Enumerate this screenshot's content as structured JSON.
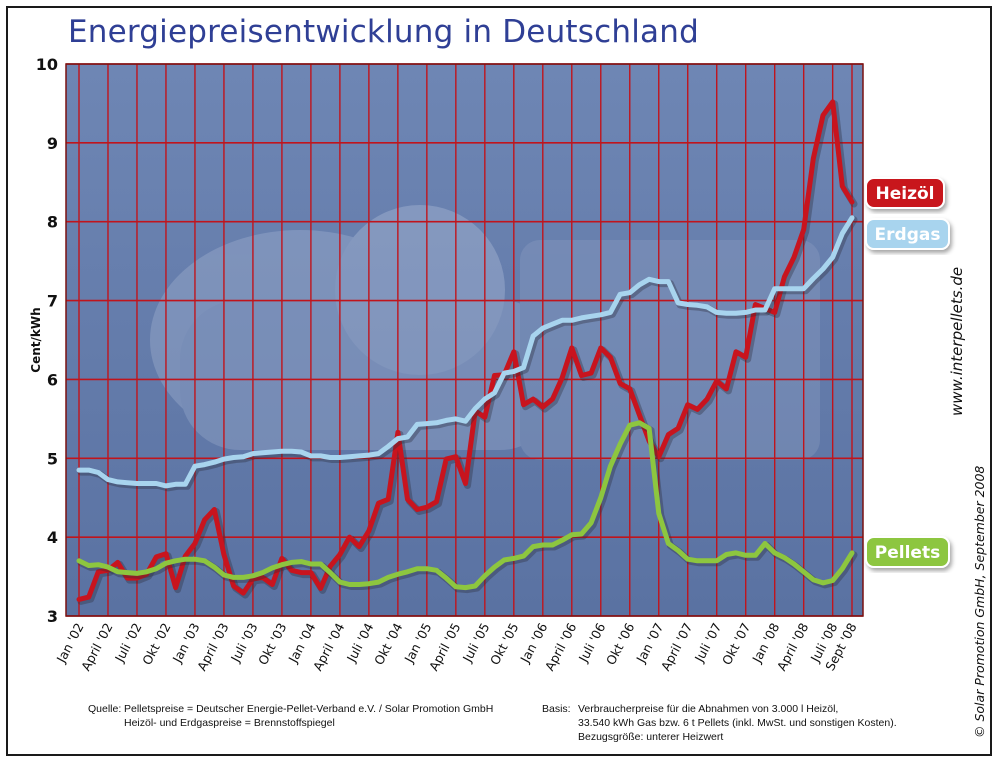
{
  "chart_data": {
    "type": "line",
    "title": "Energiepreisentwicklung in Deutschland",
    "ylabel": "Cent/kWh",
    "xlabel": "",
    "ylim": [
      3,
      10
    ],
    "yticks": [
      3,
      4,
      5,
      6,
      7,
      8,
      9,
      10
    ],
    "x_tick_labels": [
      "Jan '02",
      "April '02",
      "Juli '02",
      "Okt '02",
      "Jan '03",
      "April '03",
      "Juli '03",
      "Okt '03",
      "Jan '04",
      "April '04",
      "Juli '04",
      "Okt '04",
      "Jan '05",
      "April '05",
      "Juli '05",
      "Okt '05",
      "Jan '06",
      "April '06",
      "Juli '06",
      "Okt '06",
      "Jan '07",
      "April '07",
      "Juli '07",
      "Okt '07",
      "Jan '08",
      "April '08",
      "Juli '08",
      "Sept '08"
    ],
    "x_tick_month_index": [
      0,
      3,
      6,
      9,
      12,
      15,
      18,
      21,
      24,
      27,
      30,
      33,
      36,
      39,
      42,
      45,
      48,
      51,
      54,
      57,
      60,
      63,
      66,
      69,
      72,
      75,
      78,
      80
    ],
    "grid": true,
    "legend": "labels at right end of lines",
    "x_unit": "months since Jan 2002",
    "series": [
      {
        "name": "Heizöl",
        "color": "#c8141e",
        "x": [
          0,
          1,
          2,
          3,
          4,
          5,
          6,
          7,
          8,
          9,
          10,
          11,
          12,
          13,
          14,
          15,
          16,
          17,
          18,
          19,
          20,
          21,
          22,
          23,
          24,
          25,
          26,
          27,
          28,
          29,
          30,
          31,
          32,
          33,
          34,
          35,
          36,
          37,
          38,
          39,
          40,
          41,
          42,
          43,
          44,
          45,
          46,
          47,
          48,
          49,
          50,
          51,
          52,
          53,
          54,
          55,
          56,
          57,
          58,
          59,
          60,
          61,
          62,
          63,
          64,
          65,
          66,
          67,
          68,
          69,
          70,
          71,
          72,
          73,
          74,
          75,
          76,
          77,
          78,
          79,
          80
        ],
        "values": [
          3.21,
          3.24,
          3.56,
          3.58,
          3.68,
          3.48,
          3.48,
          3.53,
          3.75,
          3.79,
          3.36,
          3.76,
          3.92,
          4.22,
          4.35,
          3.78,
          3.38,
          3.29,
          3.47,
          3.49,
          3.4,
          3.73,
          3.58,
          3.55,
          3.55,
          3.35,
          3.63,
          3.78,
          4.0,
          3.88,
          4.08,
          4.43,
          4.48,
          5.33,
          4.48,
          4.35,
          4.38,
          4.45,
          4.99,
          5.02,
          4.68,
          5.6,
          5.52,
          6.05,
          6.06,
          6.35,
          5.68,
          5.75,
          5.65,
          5.75,
          6.02,
          6.4,
          6.05,
          6.08,
          6.4,
          6.28,
          5.95,
          5.88,
          5.55,
          5.22,
          5.02,
          5.3,
          5.38,
          5.68,
          5.62,
          5.75,
          5.98,
          5.88,
          6.35,
          6.28,
          6.95,
          6.9,
          6.85,
          7.3,
          7.55,
          7.9,
          8.8,
          9.35,
          9.52,
          8.45,
          8.25
        ]
      },
      {
        "name": "Erdgas",
        "color": "#a8d4ee",
        "x": [
          0,
          1,
          2,
          3,
          4,
          5,
          6,
          7,
          8,
          9,
          10,
          11,
          12,
          13,
          14,
          15,
          16,
          17,
          18,
          19,
          20,
          21,
          22,
          23,
          24,
          25,
          26,
          27,
          28,
          29,
          30,
          31,
          32,
          33,
          34,
          35,
          36,
          37,
          38,
          39,
          40,
          41,
          42,
          43,
          44,
          45,
          46,
          47,
          48,
          49,
          50,
          51,
          52,
          53,
          54,
          55,
          56,
          57,
          58,
          59,
          60,
          61,
          62,
          63,
          64,
          65,
          66,
          67,
          68,
          69,
          70,
          71,
          72,
          73,
          74,
          75,
          76,
          77,
          78,
          79,
          80
        ],
        "values": [
          4.85,
          4.85,
          4.82,
          4.73,
          4.7,
          4.69,
          4.68,
          4.68,
          4.68,
          4.65,
          4.67,
          4.67,
          4.9,
          4.92,
          4.95,
          4.99,
          5.01,
          5.02,
          5.06,
          5.07,
          5.08,
          5.09,
          5.09,
          5.08,
          5.03,
          5.03,
          5.01,
          5.01,
          5.02,
          5.03,
          5.04,
          5.06,
          5.15,
          5.25,
          5.27,
          5.43,
          5.44,
          5.45,
          5.48,
          5.5,
          5.47,
          5.63,
          5.75,
          5.83,
          6.08,
          6.1,
          6.15,
          6.55,
          6.65,
          6.7,
          6.75,
          6.75,
          6.78,
          6.8,
          6.82,
          6.85,
          7.08,
          7.1,
          7.2,
          7.27,
          7.24,
          7.24,
          6.97,
          6.95,
          6.94,
          6.92,
          6.85,
          6.84,
          6.84,
          6.85,
          6.88,
          6.88,
          7.15,
          7.15,
          7.15,
          7.15,
          7.28,
          7.4,
          7.55,
          7.85,
          8.05
        ]
      },
      {
        "name": "Pellets",
        "color": "#8dc63f",
        "x": [
          0,
          1,
          2,
          3,
          4,
          5,
          6,
          7,
          8,
          9,
          10,
          11,
          12,
          13,
          14,
          15,
          16,
          17,
          18,
          19,
          20,
          21,
          22,
          23,
          24,
          25,
          26,
          27,
          28,
          29,
          30,
          31,
          32,
          33,
          34,
          35,
          36,
          37,
          38,
          39,
          40,
          41,
          42,
          43,
          44,
          45,
          46,
          47,
          48,
          49,
          50,
          51,
          52,
          53,
          54,
          55,
          56,
          57,
          58,
          59,
          60,
          61,
          62,
          63,
          64,
          65,
          66,
          67,
          68,
          69,
          70,
          71,
          72,
          73,
          74,
          75,
          76,
          77,
          78,
          79,
          80
        ],
        "values": [
          3.7,
          3.64,
          3.65,
          3.62,
          3.56,
          3.55,
          3.54,
          3.56,
          3.6,
          3.67,
          3.7,
          3.72,
          3.72,
          3.7,
          3.62,
          3.52,
          3.49,
          3.49,
          3.51,
          3.55,
          3.61,
          3.65,
          3.68,
          3.69,
          3.66,
          3.66,
          3.55,
          3.43,
          3.4,
          3.4,
          3.41,
          3.43,
          3.49,
          3.53,
          3.56,
          3.6,
          3.6,
          3.58,
          3.48,
          3.37,
          3.36,
          3.38,
          3.51,
          3.62,
          3.71,
          3.73,
          3.76,
          3.88,
          3.9,
          3.9,
          3.96,
          4.03,
          4.04,
          4.18,
          4.5,
          4.9,
          5.18,
          5.42,
          5.45,
          5.38,
          4.3,
          3.92,
          3.83,
          3.72,
          3.7,
          3.7,
          3.7,
          3.78,
          3.8,
          3.77,
          3.77,
          3.92,
          3.8,
          3.74,
          3.66,
          3.56,
          3.46,
          3.42,
          3.45,
          3.6,
          3.8
        ]
      }
    ]
  },
  "side": {
    "url": "www.interpellets.de",
    "copyright": "© Solar Promotion GmbH, September 2008"
  },
  "footer": {
    "source_label": "Quelle:",
    "source_line1": "Pelletspreise = Deutscher Energie-Pellet-Verband e.V. / Solar Promotion GmbH",
    "source_line2": "Heizöl- und Erdgaspreise = Brennstoffspiegel",
    "basis_label": "Basis:",
    "basis_line1": "Verbraucherpreise für die Abnahmen von 3.000 l Heizöl,",
    "basis_line2": "33.540 kWh Gas bzw. 6 t Pellets (inkl. MwSt. und sonstigen Kosten).",
    "basis_line3": "Bezugsgröße: unterer Heizwert"
  }
}
